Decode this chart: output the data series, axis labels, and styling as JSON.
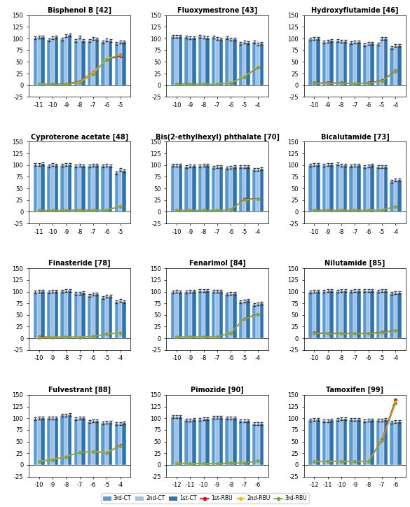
{
  "subplots": [
    {
      "title": "Bisphenol B [42]",
      "x_labels": [
        "-11",
        "-10",
        "-9",
        "-8",
        "-7",
        "-6",
        "-5"
      ],
      "bar3_ct": [
        101,
        97,
        99,
        95,
        95,
        93,
        90
      ],
      "bar2_ct": [
        103,
        101,
        106,
        103,
        100,
        97,
        92
      ],
      "bar1_ct": [
        103,
        103,
        107,
        95,
        98,
        96,
        93
      ],
      "line1_rbu": [
        3,
        3,
        3,
        8,
        28,
        55,
        63
      ],
      "line2_rbu": [
        3,
        2,
        2,
        7,
        27,
        57,
        65
      ],
      "line3_rbu": [
        2,
        2,
        2,
        5,
        24,
        55,
        66
      ]
    },
    {
      "title": "Fluoxymestrone [43]",
      "x_labels": [
        "-10",
        "-9",
        "-8",
        "-7",
        "-6",
        "-5",
        "-4"
      ],
      "bar3_ct": [
        104,
        103,
        104,
        103,
        101,
        90,
        93
      ],
      "bar2_ct": [
        105,
        101,
        103,
        100,
        99,
        93,
        88
      ],
      "bar1_ct": [
        105,
        101,
        101,
        99,
        98,
        91,
        89
      ],
      "line1_rbu": [
        3,
        3,
        2,
        3,
        5,
        18,
        38
      ],
      "line2_rbu": [
        2,
        2,
        2,
        3,
        5,
        19,
        40
      ],
      "line3_rbu": [
        2,
        2,
        2,
        2,
        4,
        18,
        39
      ]
    },
    {
      "title": "Hydroxyflutamide [46]",
      "x_labels": [
        "-10",
        "-9",
        "-8",
        "-7",
        "-6",
        "-5",
        "-4"
      ],
      "bar3_ct": [
        99,
        92,
        95,
        91,
        86,
        88,
        80
      ],
      "bar2_ct": [
        100,
        94,
        94,
        92,
        90,
        100,
        85
      ],
      "bar1_ct": [
        100,
        95,
        94,
        92,
        90,
        100,
        85
      ],
      "line1_rbu": [
        5,
        5,
        5,
        4,
        5,
        10,
        31
      ],
      "line2_rbu": [
        4,
        4,
        4,
        4,
        4,
        9,
        30
      ],
      "line3_rbu": [
        4,
        4,
        4,
        3,
        4,
        9,
        29
      ]
    },
    {
      "title": "Cyproterone acetate [48]",
      "x_labels": [
        "-11",
        "-10",
        "-9",
        "-8",
        "-7",
        "-6",
        "-5"
      ],
      "bar3_ct": [
        101,
        98,
        100,
        98,
        98,
        98,
        83
      ],
      "bar2_ct": [
        101,
        101,
        101,
        99,
        99,
        99,
        91
      ],
      "bar1_ct": [
        102,
        100,
        101,
        98,
        99,
        98,
        88
      ],
      "line1_rbu": [
        3,
        3,
        3,
        4,
        3,
        4,
        12
      ],
      "line2_rbu": [
        3,
        3,
        3,
        3,
        3,
        4,
        12
      ],
      "line3_rbu": [
        3,
        3,
        3,
        3,
        3,
        4,
        11
      ]
    },
    {
      "title": "Bis(2-ethylhexyl) phthalate [70]",
      "x_labels": [
        "-10",
        "-9",
        "-8",
        "-7",
        "-6",
        "-5",
        "-4"
      ],
      "bar3_ct": [
        99,
        97,
        98,
        95,
        94,
        96,
        91
      ],
      "bar2_ct": [
        100,
        98,
        99,
        97,
        95,
        96,
        91
      ],
      "bar1_ct": [
        100,
        98,
        99,
        97,
        96,
        97,
        92
      ],
      "line1_rbu": [
        3,
        3,
        3,
        3,
        5,
        27,
        28
      ],
      "line2_rbu": [
        3,
        3,
        3,
        3,
        5,
        25,
        27
      ],
      "line3_rbu": [
        3,
        3,
        3,
        3,
        5,
        26,
        28
      ]
    },
    {
      "title": "Bicalutamide [73]",
      "x_labels": [
        "-10",
        "-9",
        "-8",
        "-7",
        "-6",
        "-5",
        "-4"
      ],
      "bar3_ct": [
        100,
        100,
        102,
        98,
        97,
        97,
        65
      ],
      "bar2_ct": [
        101,
        101,
        100,
        99,
        98,
        97,
        68
      ],
      "bar1_ct": [
        101,
        101,
        100,
        99,
        99,
        97,
        68
      ],
      "line1_rbu": [
        4,
        3,
        3,
        3,
        4,
        4,
        11
      ],
      "line2_rbu": [
        3,
        3,
        3,
        3,
        4,
        4,
        11
      ],
      "line3_rbu": [
        3,
        3,
        3,
        3,
        3,
        4,
        11
      ]
    },
    {
      "title": "Finasteride [78]",
      "x_labels": [
        "-10",
        "-9",
        "-8",
        "-7",
        "-6",
        "-5",
        "-4"
      ],
      "bar3_ct": [
        100,
        100,
        101,
        96,
        92,
        88,
        79
      ],
      "bar2_ct": [
        101,
        101,
        103,
        97,
        95,
        91,
        81
      ],
      "bar1_ct": [
        101,
        101,
        103,
        98,
        95,
        90,
        79
      ],
      "line1_rbu": [
        3,
        3,
        3,
        3,
        4,
        10,
        12
      ],
      "line2_rbu": [
        2,
        3,
        3,
        3,
        4,
        10,
        12
      ],
      "line3_rbu": [
        2,
        2,
        3,
        2,
        4,
        9,
        11
      ]
    },
    {
      "title": "Fenarimol [84]",
      "x_labels": [
        "-10",
        "-9",
        "-8",
        "-7",
        "-6",
        "-5",
        "-4"
      ],
      "bar3_ct": [
        100,
        100,
        103,
        101,
        95,
        79,
        72
      ],
      "bar2_ct": [
        101,
        101,
        103,
        101,
        96,
        80,
        74
      ],
      "bar1_ct": [
        100,
        101,
        103,
        101,
        96,
        81,
        75
      ],
      "line1_rbu": [
        3,
        3,
        3,
        3,
        12,
        43,
        52
      ],
      "line2_rbu": [
        3,
        3,
        3,
        3,
        12,
        42,
        51
      ],
      "line3_rbu": [
        3,
        3,
        3,
        3,
        11,
        42,
        51
      ]
    },
    {
      "title": "Nilutamide [85]",
      "x_labels": [
        "-10",
        "-9",
        "-8",
        "-7",
        "-6",
        "-5",
        "-4"
      ],
      "bar3_ct": [
        100,
        101,
        101,
        101,
        102,
        101,
        97
      ],
      "bar2_ct": [
        101,
        102,
        102,
        102,
        102,
        102,
        98
      ],
      "bar1_ct": [
        101,
        102,
        102,
        102,
        102,
        102,
        98
      ],
      "line1_rbu": [
        12,
        11,
        11,
        10,
        11,
        13,
        17
      ],
      "line2_rbu": [
        11,
        10,
        10,
        10,
        10,
        12,
        16
      ],
      "line3_rbu": [
        11,
        10,
        10,
        10,
        10,
        12,
        16
      ]
    },
    {
      "title": "Fulvestrant [88]",
      "x_labels": [
        "-10",
        "-9",
        "-8",
        "-7",
        "-6",
        "-5",
        "-4"
      ],
      "bar3_ct": [
        99,
        100,
        107,
        99,
        93,
        90,
        88
      ],
      "bar2_ct": [
        100,
        101,
        107,
        100,
        95,
        92,
        89
      ],
      "bar1_ct": [
        100,
        101,
        108,
        100,
        95,
        92,
        90
      ],
      "line1_rbu": [
        8,
        12,
        18,
        27,
        29,
        27,
        42
      ],
      "line2_rbu": [
        8,
        12,
        18,
        27,
        29,
        27,
        41
      ],
      "line3_rbu": [
        7,
        11,
        17,
        27,
        28,
        26,
        40
      ]
    },
    {
      "title": "Pimozide [90]",
      "x_labels": [
        "-12",
        "-11",
        "-10",
        "-9",
        "-8",
        "-7",
        "-6"
      ],
      "bar3_ct": [
        103,
        96,
        98,
        102,
        101,
        94,
        88
      ],
      "bar2_ct": [
        103,
        96,
        99,
        102,
        101,
        95,
        89
      ],
      "bar1_ct": [
        103,
        97,
        99,
        102,
        101,
        95,
        89
      ],
      "line1_rbu": [
        4,
        3,
        3,
        3,
        4,
        4,
        9
      ],
      "line2_rbu": [
        4,
        3,
        3,
        3,
        4,
        4,
        9
      ],
      "line3_rbu": [
        3,
        3,
        3,
        3,
        4,
        4,
        9
      ]
    },
    {
      "title": "Tamoxifen [99]",
      "x_labels": [
        "-12",
        "-11",
        "-10",
        "-9",
        "-8",
        "-7",
        "-6"
      ],
      "bar3_ct": [
        96,
        95,
        98,
        97,
        95,
        96,
        92
      ],
      "bar2_ct": [
        97,
        95,
        99,
        98,
        96,
        96,
        93
      ],
      "bar1_ct": [
        97,
        96,
        99,
        98,
        96,
        97,
        93
      ],
      "line1_rbu": [
        8,
        8,
        8,
        8,
        8,
        55,
        140
      ],
      "line2_rbu": [
        8,
        8,
        8,
        8,
        8,
        53,
        135
      ],
      "line3_rbu": [
        7,
        7,
        7,
        7,
        7,
        52,
        132
      ]
    }
  ],
  "bar_colors": {
    "3rd_ct": "#5B9BD5",
    "2nd_ct": "#9DC3E6",
    "1st_ct": "#2E74B5"
  },
  "line_colors": {
    "1st_rbu": "#FF0000",
    "2nd_rbu": "#FFC000",
    "3rd_rbu": "#70AD47"
  },
  "ylim": [
    -25,
    150
  ],
  "yticks": [
    -25,
    0,
    25,
    50,
    75,
    100,
    125,
    150
  ],
  "legend_labels": [
    "3rd-CT",
    "2nd-CT",
    "1st-CT",
    "1st-RBU",
    "2nd-RBU",
    "3rd-RBU"
  ]
}
